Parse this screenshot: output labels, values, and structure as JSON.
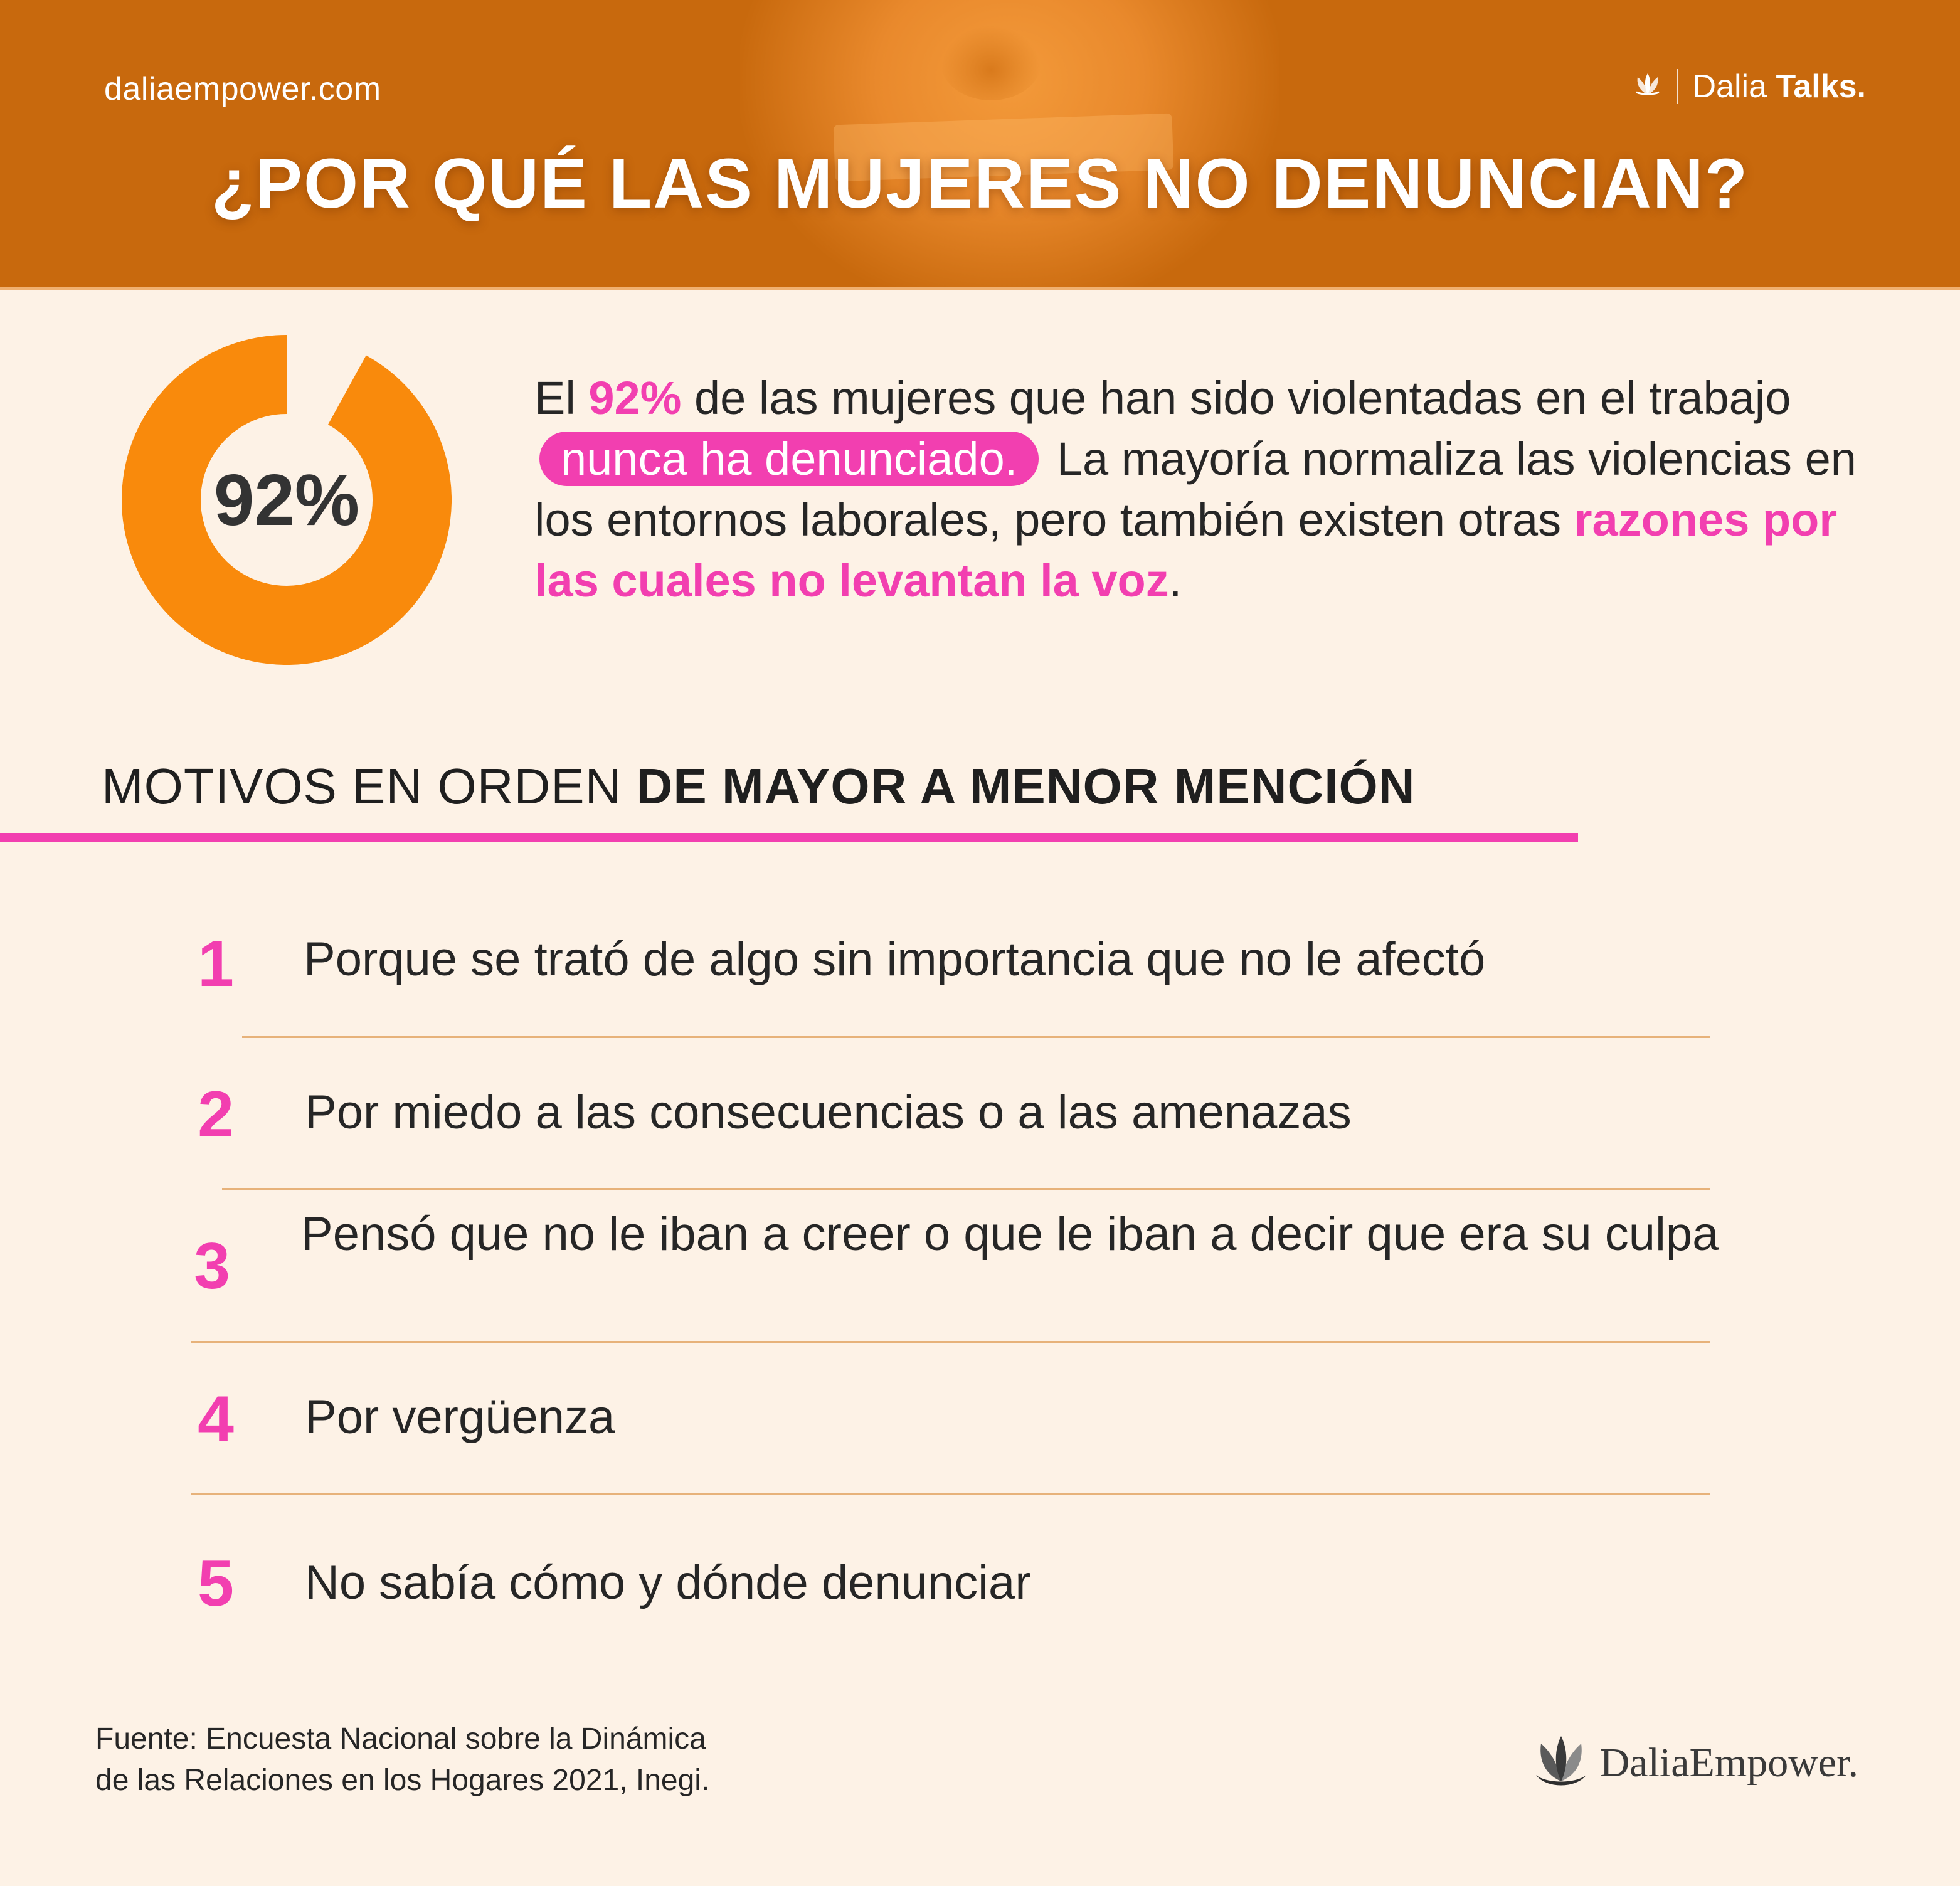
{
  "header": {
    "site_url": "daliaempower.com",
    "brand_light": "Dalia",
    "brand_bold": "Talks.",
    "title": "¿POR QUÉ LAS MUJERES NO DENUNCIAN?"
  },
  "stat": {
    "label": "92%",
    "value_percent": 92,
    "fill_color": "#f98a0c",
    "remainder_color": "#fdf2e6"
  },
  "intro": {
    "part1": "El ",
    "highlight_percent": "92%",
    "part2": " de las mujeres que han sido violentadas en el trabajo ",
    "pill_text": "nunca ha denunciado.",
    "part3": " La mayoría normaliza las violencias en los entornos laborales, pero también existen otras ",
    "highlight_reasons": "razones por las cuales no levantan la voz",
    "part4": "."
  },
  "section": {
    "title_regular": "MOTIVOS EN ORDEN ",
    "title_bold": "DE MAYOR A MENOR MENCIÓN"
  },
  "reasons": [
    {
      "number": "1",
      "text": "Porque se trató de algo sin importancia que no le afectó"
    },
    {
      "number": "2",
      "text": "Por miedo a las consecuencias o a las amenazas"
    },
    {
      "number": "3",
      "text": "Pensó que no le iban a creer o que le iban a decir que era su culpa"
    },
    {
      "number": "4",
      "text": "Por vergüenza"
    },
    {
      "number": "5",
      "text": "No sabía cómo y dónde denunciar"
    }
  ],
  "footer": {
    "source_line1": "Fuente: Encuesta Nacional sobre la Dinámica",
    "source_line2": "de las Relaciones en los Hogares 2021, Inegi.",
    "logo_text": "DaliaEmpower."
  },
  "colors": {
    "header_bg": "#c8690d",
    "page_bg": "#fdf2e6",
    "accent_pink": "#f23fb0",
    "accent_orange": "#f98a0c",
    "divider": "#e7b27a"
  },
  "icons": {
    "brand": "lotus-icon",
    "footer": "lotus-logo-icon"
  }
}
